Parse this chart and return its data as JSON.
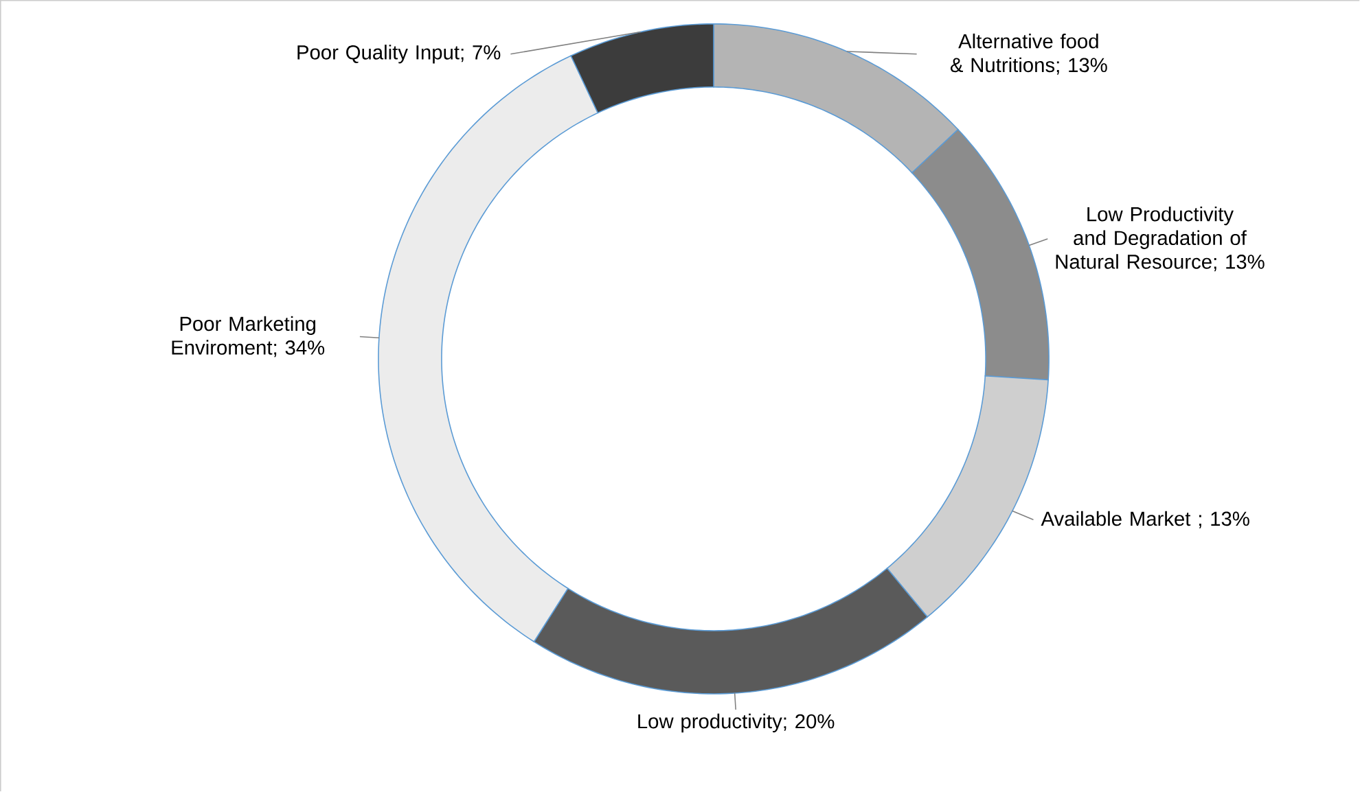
{
  "chart_data": {
    "type": "donut",
    "categories": [
      "Alternative food & Nutritions",
      "Low Productivity and Degradation of Natural Resource",
      "Available Market ",
      "Low productivity",
      "Poor Marketing Enviroment",
      "Poor Quality Input"
    ],
    "values": [
      13,
      13,
      13,
      20,
      34,
      7
    ],
    "value_labels": [
      "; 13%",
      "; 13%",
      "; 13%",
      "; 20%",
      "; 34%",
      "; 7%"
    ],
    "colors": [
      "#b4b4b4",
      "#8c8c8c",
      "#cfcfcf",
      "#5a5a5a",
      "#ececec",
      "#3c3c3c"
    ]
  }
}
